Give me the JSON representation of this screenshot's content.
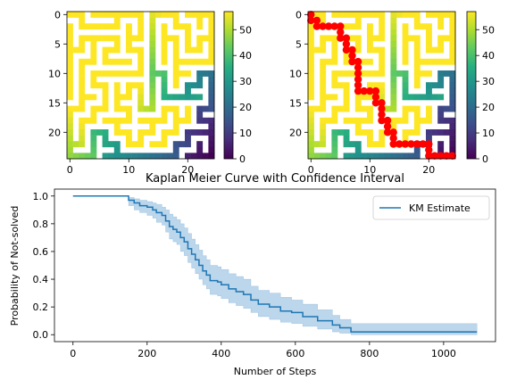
{
  "chart_data": [
    {
      "type": "heatmap",
      "title": "",
      "grid_size": 25,
      "xticks": [
        0,
        10,
        20
      ],
      "yticks": [
        0,
        5,
        10,
        15,
        20
      ],
      "colorbar": {
        "colormap": "viridis",
        "range": [
          0,
          57
        ],
        "ticks": [
          0,
          10,
          20,
          30,
          40,
          50
        ]
      },
      "description": "maze distance map"
    },
    {
      "type": "heatmap",
      "title": "",
      "grid_size": 25,
      "xticks": [
        0,
        10,
        20
      ],
      "yticks": [
        0,
        5,
        10,
        15,
        20
      ],
      "colorbar": {
        "colormap": "viridis",
        "range": [
          0,
          57
        ],
        "ticks": [
          0,
          10,
          20,
          30,
          40,
          50
        ]
      },
      "path_color": "#ff0000",
      "path": [
        [
          0,
          0
        ],
        [
          1,
          0
        ],
        [
          1,
          1
        ],
        [
          2,
          1
        ],
        [
          2,
          2
        ],
        [
          2,
          3
        ],
        [
          2,
          4
        ],
        [
          2,
          5
        ],
        [
          3,
          5
        ],
        [
          4,
          5
        ],
        [
          4,
          6
        ],
        [
          5,
          6
        ],
        [
          6,
          6
        ],
        [
          6,
          7
        ],
        [
          7,
          7
        ],
        [
          8,
          7
        ],
        [
          8,
          8
        ],
        [
          9,
          8
        ],
        [
          10,
          8
        ],
        [
          11,
          8
        ],
        [
          12,
          8
        ],
        [
          13,
          8
        ],
        [
          13,
          9
        ],
        [
          13,
          10
        ],
        [
          13,
          11
        ],
        [
          14,
          11
        ],
        [
          15,
          11
        ],
        [
          15,
          12
        ],
        [
          16,
          12
        ],
        [
          17,
          12
        ],
        [
          18,
          12
        ],
        [
          18,
          13
        ],
        [
          19,
          13
        ],
        [
          20,
          13
        ],
        [
          20,
          14
        ],
        [
          21,
          14
        ],
        [
          22,
          14
        ],
        [
          22,
          15
        ],
        [
          22,
          16
        ],
        [
          22,
          17
        ],
        [
          22,
          18
        ],
        [
          22,
          19
        ],
        [
          22,
          20
        ],
        [
          23,
          20
        ],
        [
          24,
          20
        ],
        [
          24,
          21
        ],
        [
          24,
          22
        ],
        [
          24,
          23
        ],
        [
          24,
          24
        ]
      ]
    },
    {
      "type": "line",
      "title": "Kaplan Meier Curve with Confidence Interval",
      "xlabel": "Number of Steps",
      "ylabel": "Probability of Not-solved",
      "xlim": [
        -50,
        1140
      ],
      "ylim": [
        -0.05,
        1.05
      ],
      "xticks": [
        0,
        200,
        400,
        600,
        800,
        1000
      ],
      "yticks": [
        0.0,
        0.2,
        0.4,
        0.6,
        0.8,
        1.0
      ],
      "legend": {
        "position": "upper-right",
        "entries": [
          "KM Estimate"
        ]
      },
      "series": [
        {
          "name": "KM Estimate",
          "color": "#1f77b4",
          "ci_color": "#a6c8e4",
          "points": [
            [
              0,
              1.0
            ],
            [
              140,
              1.0
            ],
            [
              150,
              0.97
            ],
            [
              165,
              0.95
            ],
            [
              180,
              0.93
            ],
            [
              200,
              0.92
            ],
            [
              215,
              0.9
            ],
            [
              225,
              0.88
            ],
            [
              240,
              0.86
            ],
            [
              250,
              0.82
            ],
            [
              260,
              0.78
            ],
            [
              270,
              0.76
            ],
            [
              280,
              0.74
            ],
            [
              290,
              0.7
            ],
            [
              300,
              0.67
            ],
            [
              310,
              0.62
            ],
            [
              320,
              0.58
            ],
            [
              330,
              0.54
            ],
            [
              340,
              0.5
            ],
            [
              350,
              0.46
            ],
            [
              360,
              0.43
            ],
            [
              370,
              0.39
            ],
            [
              390,
              0.38
            ],
            [
              400,
              0.36
            ],
            [
              420,
              0.33
            ],
            [
              440,
              0.31
            ],
            [
              460,
              0.29
            ],
            [
              480,
              0.25
            ],
            [
              500,
              0.22
            ],
            [
              530,
              0.2
            ],
            [
              560,
              0.17
            ],
            [
              590,
              0.16
            ],
            [
              620,
              0.13
            ],
            [
              660,
              0.1
            ],
            [
              700,
              0.07
            ],
            [
              720,
              0.05
            ],
            [
              750,
              0.02
            ],
            [
              1090,
              0.02
            ]
          ],
          "ci_upper": [
            [
              0,
              1.0
            ],
            [
              140,
              1.0
            ],
            [
              150,
              0.99
            ],
            [
              165,
              0.98
            ],
            [
              180,
              0.97
            ],
            [
              200,
              0.96
            ],
            [
              215,
              0.95
            ],
            [
              225,
              0.94
            ],
            [
              240,
              0.92
            ],
            [
              250,
              0.9
            ],
            [
              260,
              0.87
            ],
            [
              270,
              0.85
            ],
            [
              280,
              0.83
            ],
            [
              290,
              0.8
            ],
            [
              300,
              0.77
            ],
            [
              310,
              0.73
            ],
            [
              320,
              0.69
            ],
            [
              330,
              0.65
            ],
            [
              340,
              0.61
            ],
            [
              350,
              0.57
            ],
            [
              360,
              0.54
            ],
            [
              370,
              0.5
            ],
            [
              390,
              0.49
            ],
            [
              400,
              0.47
            ],
            [
              420,
              0.44
            ],
            [
              440,
              0.42
            ],
            [
              460,
              0.4
            ],
            [
              480,
              0.35
            ],
            [
              500,
              0.32
            ],
            [
              530,
              0.3
            ],
            [
              560,
              0.27
            ],
            [
              590,
              0.25
            ],
            [
              620,
              0.22
            ],
            [
              660,
              0.18
            ],
            [
              700,
              0.14
            ],
            [
              720,
              0.11
            ],
            [
              750,
              0.08
            ],
            [
              1090,
              0.08
            ]
          ],
          "ci_lower": [
            [
              0,
              1.0
            ],
            [
              140,
              1.0
            ],
            [
              150,
              0.93
            ],
            [
              165,
              0.9
            ],
            [
              180,
              0.88
            ],
            [
              200,
              0.86
            ],
            [
              215,
              0.84
            ],
            [
              225,
              0.81
            ],
            [
              240,
              0.79
            ],
            [
              250,
              0.74
            ],
            [
              260,
              0.69
            ],
            [
              270,
              0.67
            ],
            [
              280,
              0.65
            ],
            [
              290,
              0.6
            ],
            [
              300,
              0.57
            ],
            [
              310,
              0.52
            ],
            [
              320,
              0.48
            ],
            [
              330,
              0.44
            ],
            [
              340,
              0.4
            ],
            [
              350,
              0.36
            ],
            [
              360,
              0.33
            ],
            [
              370,
              0.29
            ],
            [
              390,
              0.28
            ],
            [
              400,
              0.26
            ],
            [
              420,
              0.23
            ],
            [
              440,
              0.21
            ],
            [
              460,
              0.19
            ],
            [
              480,
              0.16
            ],
            [
              500,
              0.13
            ],
            [
              530,
              0.11
            ],
            [
              560,
              0.09
            ],
            [
              590,
              0.08
            ],
            [
              620,
              0.06
            ],
            [
              660,
              0.04
            ],
            [
              700,
              0.02
            ],
            [
              720,
              0.01
            ],
            [
              750,
              0.0
            ],
            [
              1090,
              0.0
            ]
          ]
        }
      ]
    }
  ]
}
